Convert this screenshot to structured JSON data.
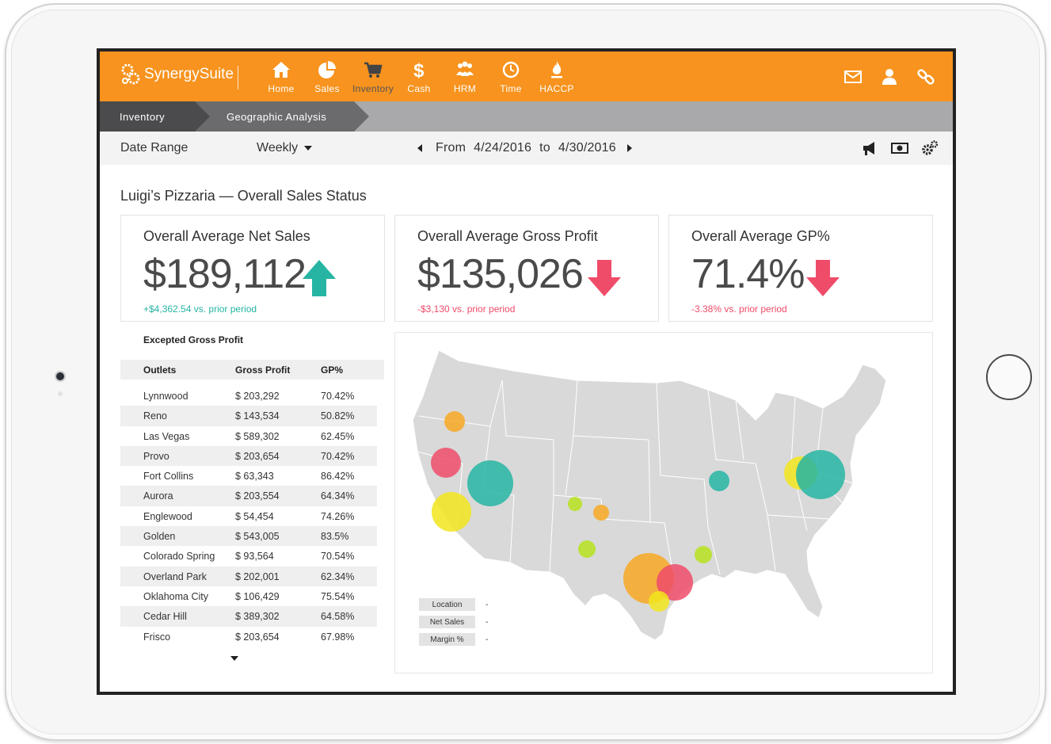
{
  "app": {
    "name": "SynergySuite"
  },
  "nav": [
    {
      "label": "Home",
      "icon": "home-icon"
    },
    {
      "label": "Sales",
      "icon": "pie-chart-icon"
    },
    {
      "label": "Inventory",
      "icon": "cart-icon"
    },
    {
      "label": "Cash",
      "icon": "dollar-icon"
    },
    {
      "label": "HRM",
      "icon": "people-icon"
    },
    {
      "label": "Time",
      "icon": "clock-icon"
    },
    {
      "label": "HACCP",
      "icon": "flame-icon"
    }
  ],
  "top_actions": [
    "mail-icon",
    "user-icon",
    "link-icon"
  ],
  "breadcrumb": [
    "Inventory",
    "Geographic Analysis"
  ],
  "filter": {
    "label": "Date Range",
    "period": "Weekly",
    "from_label": "From",
    "from": "4/24/2016",
    "to_label": "to",
    "to": "4/30/2016",
    "actions": [
      "megaphone-icon",
      "money-icon",
      "settings-icon"
    ]
  },
  "page_title": "Luigi’s Pizzaria — Overall Sales Status",
  "kpis": [
    {
      "label": "Overall Average Net Sales",
      "value": "$189,112",
      "trend": "up",
      "change": "+$4,362.54 vs. prior period"
    },
    {
      "label": "Overall Average Gross Profit",
      "value": "$135,026",
      "trend": "down",
      "change": "-$3,130 vs. prior period"
    },
    {
      "label": "Overall Average GP%",
      "value": "71.4%",
      "trend": "down",
      "change": "-3.38% vs. prior period"
    }
  ],
  "colors": {
    "brand": "#f7931e",
    "up": "#26b5a3",
    "down": "#ef4c6a",
    "yellow": "#f2e51c",
    "orange": "#f7a823",
    "lime": "#b7e21e"
  },
  "table": {
    "title": "Excepted Gross Profit",
    "headers": [
      "Outlets",
      "Gross Profit",
      "GP%"
    ],
    "rows": [
      [
        "Lynnwood",
        "$ 203,292",
        "70.42%"
      ],
      [
        "Reno",
        "$ 143,534",
        "50.82%"
      ],
      [
        "Las Vegas",
        "$ 589,302",
        "62.45%"
      ],
      [
        "Provo",
        "$ 203,654",
        "70.42%"
      ],
      [
        "Fort Collins",
        "$ 63,343",
        "86.42%"
      ],
      [
        "Aurora",
        "$ 203,554",
        "64.34%"
      ],
      [
        "Englewood",
        "$ 54,454",
        "74.26%"
      ],
      [
        "Golden",
        "$ 543,005",
        "83.5%"
      ],
      [
        "Colorado Spring",
        "$ 93,564",
        "70.54%"
      ],
      [
        "Overland Park",
        "$ 202,001",
        "62.34%"
      ],
      [
        "Oklahoma City",
        "$ 106,429",
        "75.54%"
      ],
      [
        "Cedar Hill",
        "$ 389,302",
        "64.58%"
      ],
      [
        "Frisco",
        "$ 203,654",
        "67.98%"
      ]
    ]
  },
  "map": {
    "legend": [
      {
        "key": "Location",
        "value": "-"
      },
      {
        "key": "Net Sales",
        "value": "-"
      },
      {
        "key": "Margin %",
        "value": "-"
      }
    ],
    "bubbles": [
      {
        "color": "orange"
      },
      {
        "color": "down"
      },
      {
        "color": "up"
      },
      {
        "color": "yellow"
      },
      {
        "color": "lime"
      },
      {
        "color": "orange"
      },
      {
        "color": "lime"
      },
      {
        "color": "orange"
      },
      {
        "color": "down"
      },
      {
        "color": "yellow"
      },
      {
        "color": "lime"
      },
      {
        "color": "up"
      },
      {
        "color": "yellow"
      },
      {
        "color": "up"
      }
    ]
  }
}
